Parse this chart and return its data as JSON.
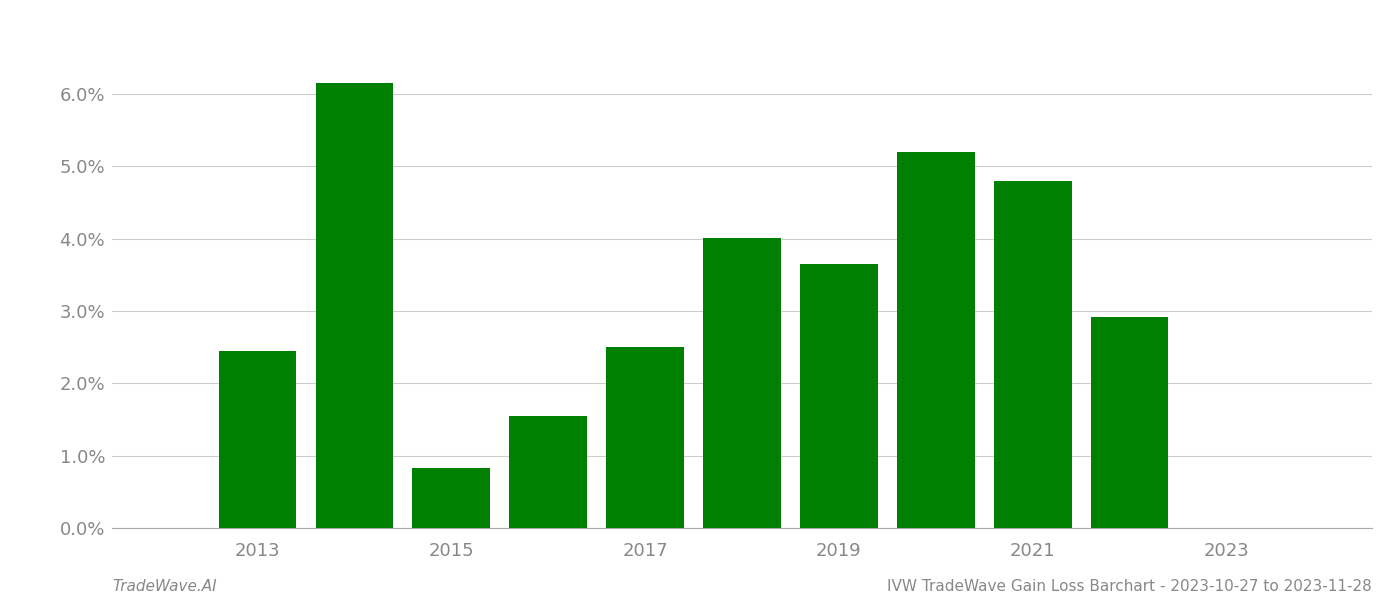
{
  "years": [
    2013,
    2014,
    2015,
    2016,
    2017,
    2018,
    2019,
    2020,
    2021,
    2022,
    2023
  ],
  "values": [
    0.0245,
    0.0615,
    0.0083,
    0.0155,
    0.025,
    0.0401,
    0.0365,
    0.052,
    0.048,
    0.0291,
    0.0
  ],
  "bar_color": "#008000",
  "title": "IVW TradeWave Gain Loss Barchart - 2023-10-27 to 2023-11-28",
  "footer_left": "TradeWave.AI",
  "ylim": [
    0.0,
    0.068
  ],
  "yticks": [
    0.0,
    0.01,
    0.02,
    0.03,
    0.04,
    0.05,
    0.06
  ],
  "xtick_labels": [
    "2013",
    "2015",
    "2017",
    "2019",
    "2021",
    "2023"
  ],
  "xtick_positions": [
    2013,
    2015,
    2017,
    2019,
    2021,
    2023
  ],
  "xlim_left": 2011.5,
  "xlim_right": 2024.5,
  "background_color": "#ffffff",
  "grid_color": "#cccccc",
  "bar_width": 0.8,
  "tick_fontsize": 13,
  "footer_fontsize": 11
}
